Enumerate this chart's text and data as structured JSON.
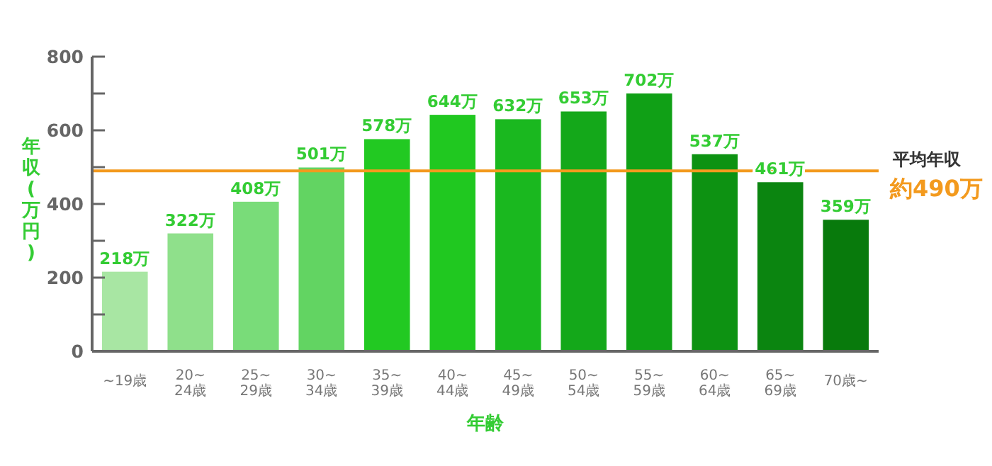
{
  "chart_data": {
    "type": "bar",
    "categories": [
      "~19歳",
      "20~\n24歳",
      "25~\n29歳",
      "30~\n34歳",
      "35~\n39歳",
      "40~\n44歳",
      "45~\n49歳",
      "50~\n54歳",
      "55~\n59歳",
      "60~\n64歳",
      "65~\n69歳",
      "70歳~"
    ],
    "values": [
      218,
      322,
      408,
      501,
      578,
      644,
      632,
      653,
      702,
      537,
      461,
      359
    ],
    "value_labels": [
      "218万",
      "322万",
      "408万",
      "501万",
      "578万",
      "644万",
      "632万",
      "653万",
      "702万",
      "537万",
      "461万",
      "359万"
    ],
    "colors": [
      "#a8e6a3",
      "#8fe08b",
      "#79dc79",
      "#62d462",
      "#22c922",
      "#20c820",
      "#1ab81f",
      "#14a81a",
      "#10a016",
      "#0d9212",
      "#0b8510",
      "#087a0c"
    ],
    "xlabel": "年齢",
    "ylabel": "年収(万円)",
    "ylim": [
      0,
      800
    ],
    "yticks": [
      0,
      {
        "value": 100,
        "label": null
      },
      200,
      {
        "value": 300,
        "label": null
      },
      400,
      {
        "value": 500,
        "label": null
      },
      600,
      {
        "value": 700,
        "label": null
      },
      800
    ],
    "ref_lines": [
      {
        "axis": "y",
        "value": 490,
        "label": "約490万",
        "color": "#f39a1e"
      }
    ],
    "annotations": [
      "平均年収"
    ],
    "grid": false
  }
}
